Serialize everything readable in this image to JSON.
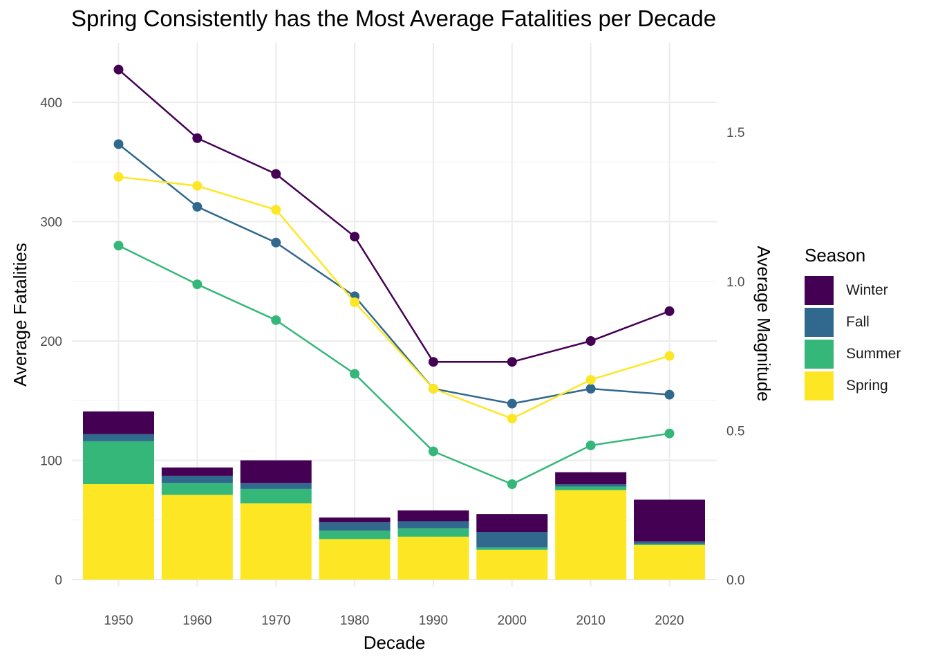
{
  "chart_data": {
    "type": "bar",
    "title": "Spring Consistently has the Most Average Fatalities per Decade",
    "xlabel": "Decade",
    "ylabel": "Average Fatalities",
    "y2label": "Average Magnitude",
    "categories": [
      "1950",
      "1960",
      "1970",
      "1980",
      "1990",
      "2000",
      "2010",
      "2020"
    ],
    "ylim": [
      0,
      450
    ],
    "y2lim": [
      0,
      1.8
    ],
    "yticks": [
      0,
      100,
      200,
      300,
      400
    ],
    "y2ticks": [
      "0.0",
      "0.5",
      "1.0",
      "1.5"
    ],
    "legend_title": "Season",
    "legend_placement": "right",
    "grid": true,
    "stacking_order": [
      "Spring",
      "Summer",
      "Fall",
      "Winter"
    ],
    "series": [
      {
        "name": "Winter",
        "color": "#440154",
        "bar_values": [
          19,
          7,
          19,
          4,
          9,
          15,
          10,
          35
        ],
        "line_values": [
          1.71,
          1.48,
          1.36,
          1.15,
          0.73,
          0.73,
          0.8,
          0.9
        ]
      },
      {
        "name": "Fall",
        "color": "#31688E",
        "bar_values": [
          6,
          6,
          5,
          7,
          6,
          13,
          2,
          2
        ],
        "line_values": [
          1.46,
          1.25,
          1.13,
          0.95,
          0.64,
          0.59,
          0.64,
          0.62
        ]
      },
      {
        "name": "Summer",
        "color": "#35B779",
        "bar_values": [
          36,
          10,
          12,
          7,
          7,
          2,
          3,
          1
        ],
        "line_values": [
          1.12,
          0.99,
          0.87,
          0.69,
          0.43,
          0.32,
          0.45,
          0.49
        ]
      },
      {
        "name": "Spring",
        "color": "#FDE725",
        "bar_values": [
          80,
          71,
          64,
          34,
          36,
          25,
          75,
          29
        ],
        "line_values": [
          1.35,
          1.32,
          1.24,
          0.93,
          0.64,
          0.54,
          0.67,
          0.75
        ]
      }
    ]
  }
}
